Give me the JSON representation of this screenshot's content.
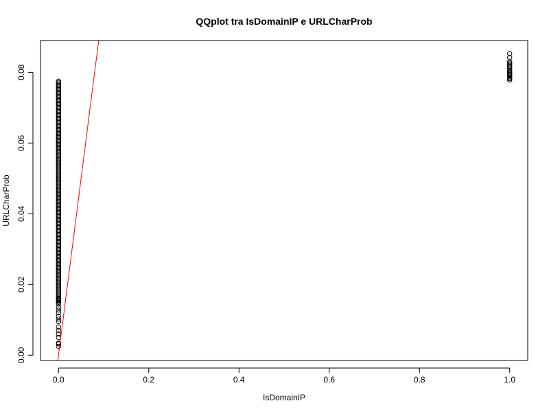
{
  "chart_data": {
    "type": "scatter",
    "title": "QQplot tra IsDomainIP e URLCharProb",
    "xlabel": "IsDomainIP",
    "ylabel": "URLCharProb",
    "xlim": [
      -0.04,
      1.04
    ],
    "ylim": [
      -0.0015,
      0.089
    ],
    "x_ticks": [
      0,
      0.2,
      0.4,
      0.6,
      0.8,
      1.0
    ],
    "x_tick_labels": [
      "0.0",
      "0.2",
      "0.4",
      "0.6",
      "0.8",
      "1.0"
    ],
    "y_ticks": [
      0,
      0.02,
      0.04,
      0.06,
      0.08
    ],
    "y_tick_labels": [
      "0.00",
      "0.02",
      "0.04",
      "0.06",
      "0.08"
    ],
    "grid": false,
    "legend": "none",
    "point_style": "open-circle",
    "point_color": "#000000",
    "line_color": "#ff0000",
    "series": [
      {
        "x_value": 0,
        "y_values": [
          0.0025,
          0.0032,
          0.0034,
          0.005,
          0.006,
          0.007,
          0.008,
          0.0095,
          0.0102,
          0.011,
          0.012,
          0.0128,
          0.0136,
          0.0145,
          0.015,
          0.0155,
          0.016
        ],
        "dense_range": [
          0.015,
          0.0775
        ]
      },
      {
        "x_value": 1,
        "y_values": [
          0.0778,
          0.0782,
          0.0785,
          0.0789,
          0.0792,
          0.0795,
          0.0798,
          0.0801,
          0.0805,
          0.081,
          0.0815,
          0.0818,
          0.0822,
          0.0826,
          0.083,
          0.0842,
          0.0853
        ]
      }
    ],
    "reference_line": {
      "slope": 1.0,
      "intercept": 0.0
    }
  }
}
